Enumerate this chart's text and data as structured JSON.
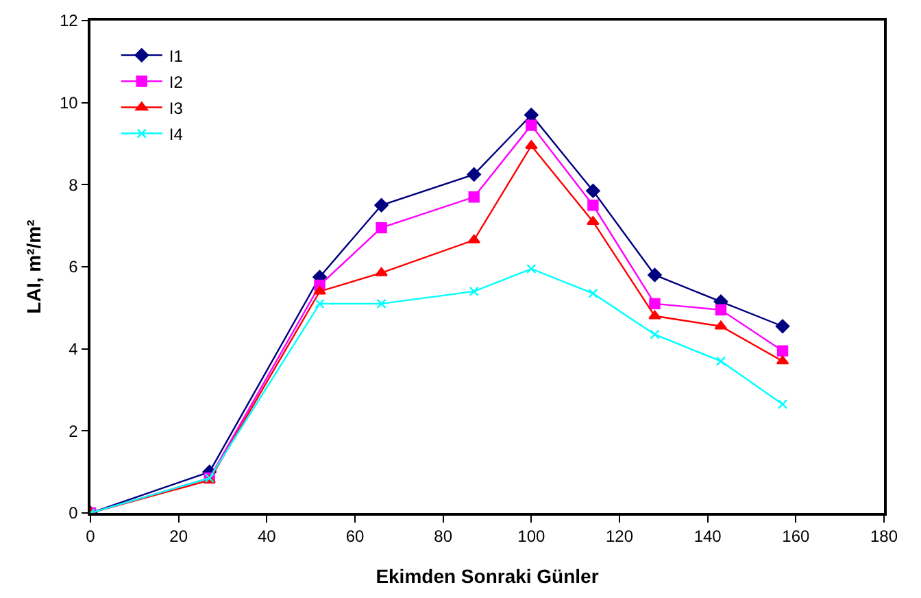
{
  "chart_data": {
    "type": "line",
    "xlabel": "Ekimden Sonraki Günler",
    "ylabel": "LAI, m²/m²",
    "x": [
      0,
      27,
      52,
      66,
      87,
      100,
      114,
      128,
      143,
      157
    ],
    "series": [
      {
        "name": "I1",
        "color": "#000080",
        "marker": "diamond",
        "values": [
          0,
          1.0,
          5.75,
          7.5,
          8.25,
          9.7,
          7.85,
          5.8,
          5.15,
          4.55
        ]
      },
      {
        "name": "I2",
        "color": "#ff00ff",
        "marker": "square",
        "values": [
          0,
          0.85,
          5.55,
          6.95,
          7.7,
          9.45,
          7.5,
          5.1,
          4.95,
          3.95
        ]
      },
      {
        "name": "I3",
        "color": "#ff0000",
        "marker": "triangle",
        "values": [
          0,
          0.8,
          5.4,
          5.85,
          6.65,
          8.95,
          7.1,
          4.8,
          4.55,
          3.7
        ]
      },
      {
        "name": "I4",
        "color": "#00ffff",
        "marker": "cross",
        "values": [
          0,
          0.85,
          5.1,
          5.1,
          5.4,
          5.95,
          5.35,
          4.35,
          3.7,
          2.65
        ]
      }
    ],
    "xlim": [
      0,
      180
    ],
    "xticks": [
      0,
      20,
      40,
      60,
      80,
      100,
      120,
      140,
      160,
      180
    ],
    "ylim": [
      0,
      12
    ],
    "yticks": [
      0,
      2,
      4,
      6,
      8,
      10,
      12
    ],
    "grid": false,
    "legend": "top left",
    "line_style": "solid"
  }
}
